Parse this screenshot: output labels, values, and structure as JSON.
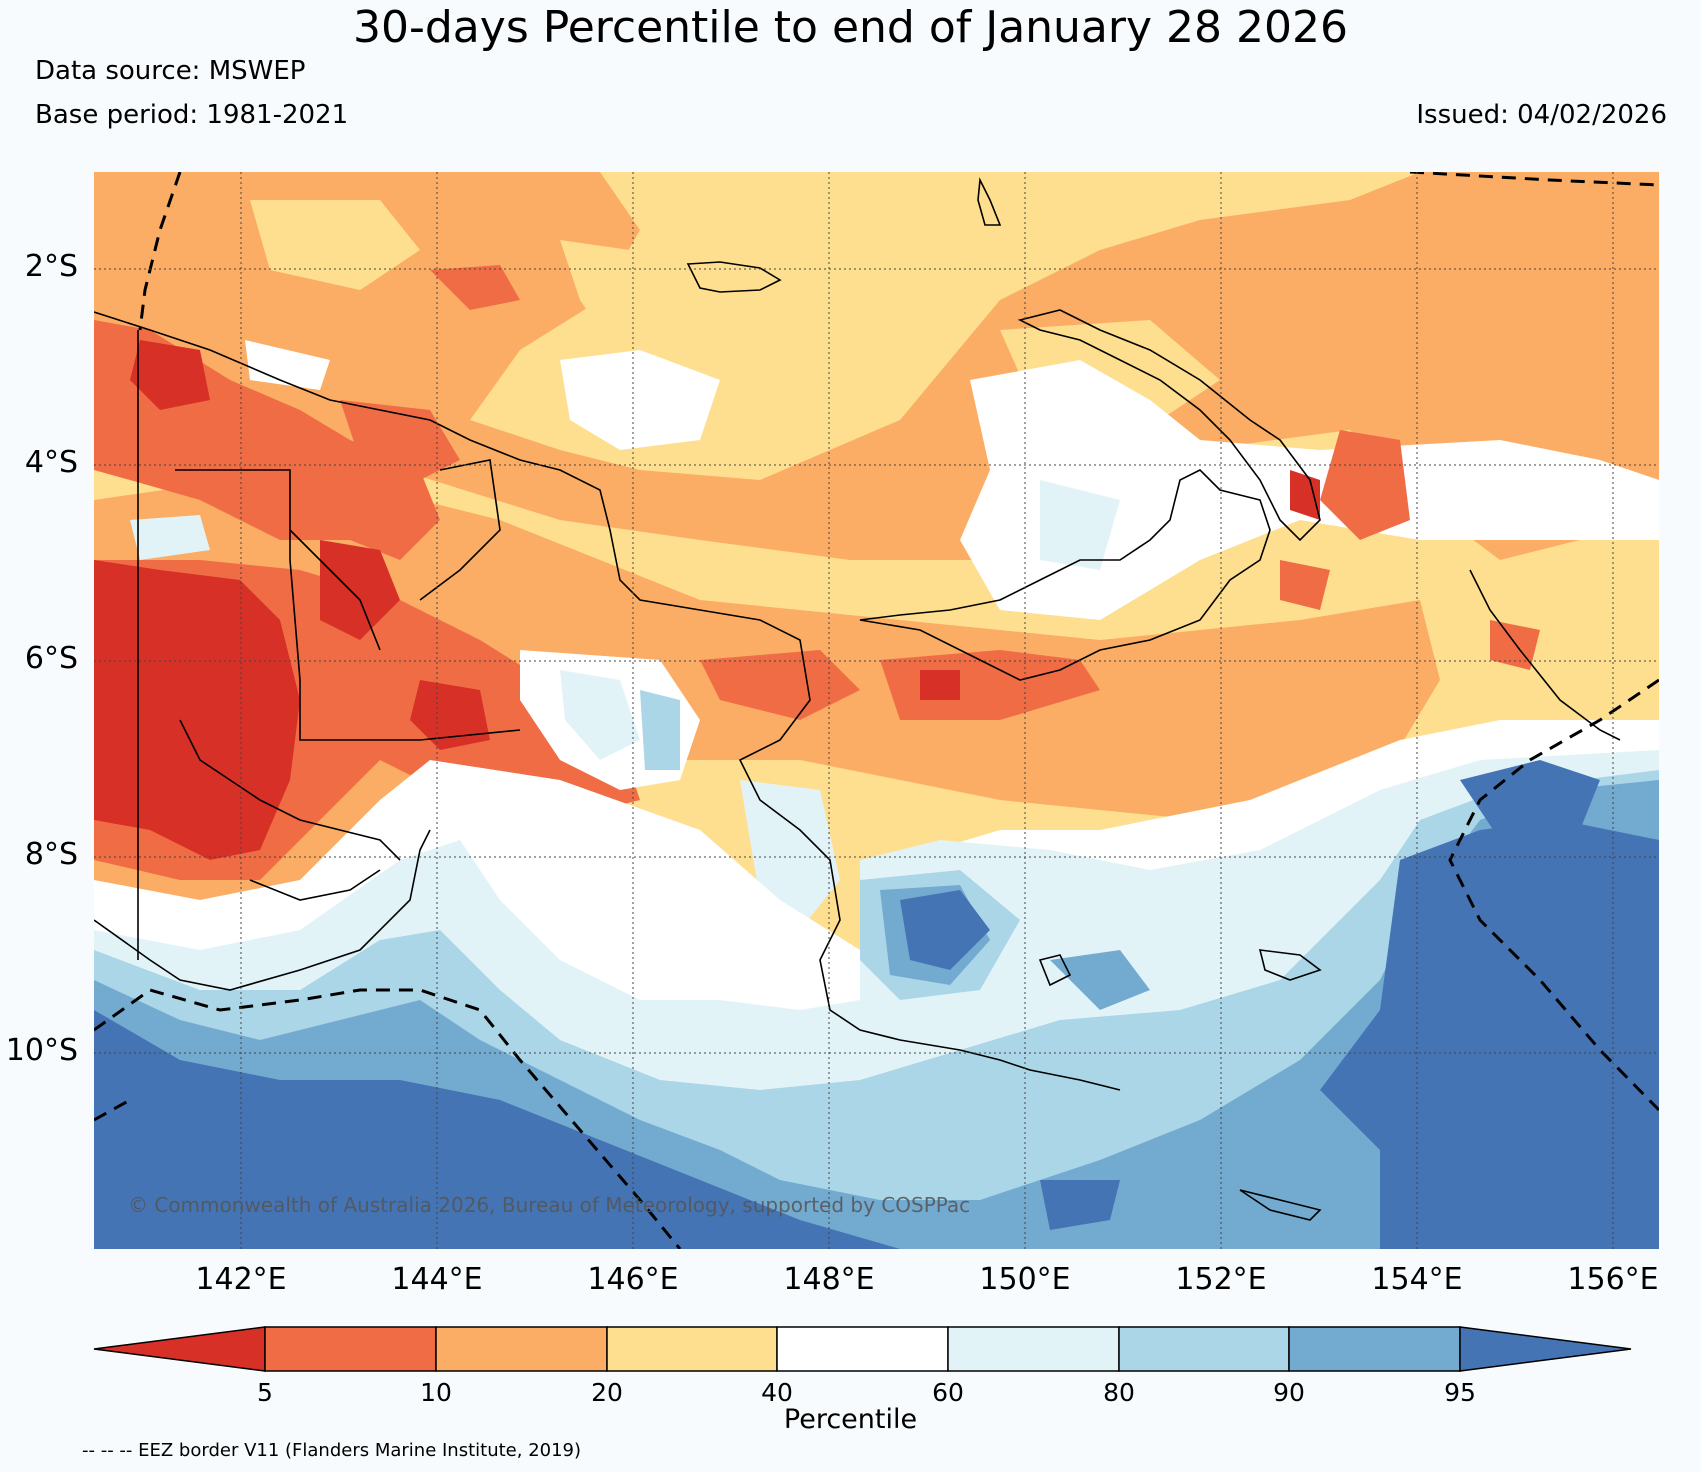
{
  "title": "30-days Percentile to end of January 28 2026",
  "data_source": "Data source: MSWEP",
  "base_period": "Base period: 1981-2021",
  "issued": "Issued: 04/02/2026",
  "copyright": "© Commonwealth of Australia 2026, Bureau of Meteorology, supported by COSPPac",
  "eez_note": "-- -- -- EEZ border V11 (Flanders Marine Institute, 2019)",
  "lat_labels": [
    "2°S",
    "4°S",
    "6°S",
    "8°S",
    "10°S"
  ],
  "lon_labels": [
    "142°E",
    "144°E",
    "146°E",
    "148°E",
    "150°E",
    "152°E",
    "154°E",
    "156°E"
  ],
  "colorbar": {
    "title": "Percentile",
    "ticks": [
      "5",
      "10",
      "20",
      "40",
      "60",
      "80",
      "90",
      "95"
    ],
    "colors": [
      "#d73027",
      "#ef6c44",
      "#fbad65",
      "#fedf8f",
      "#ffffff",
      "#e2f3f8",
      "#abd6e8",
      "#73aad0",
      "#4474b4"
    ]
  }
}
